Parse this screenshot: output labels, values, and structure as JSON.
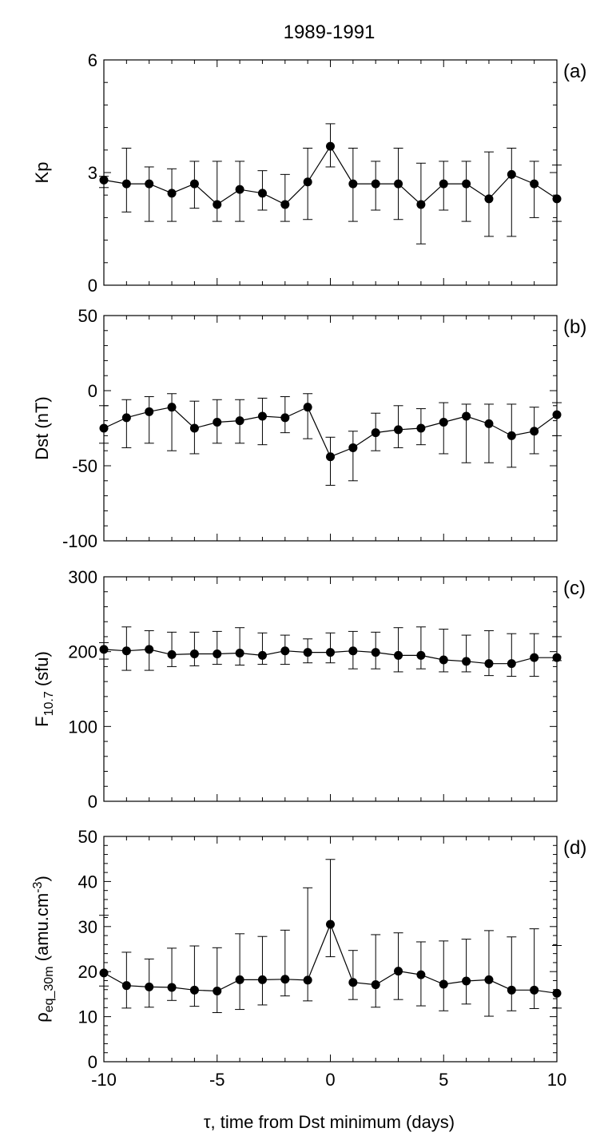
{
  "title": "1989-1991",
  "xlabel": "τ, time from Dst minimum (days)",
  "chart_data": [
    {
      "type": "line",
      "panel": "(a)",
      "ylabel": "Kp",
      "xlim": [
        -10,
        10
      ],
      "ylim": [
        0,
        6
      ],
      "x": [
        -10,
        -9,
        -8,
        -7,
        -6,
        -5,
        -4,
        -3,
        -2,
        -1,
        0,
        1,
        2,
        3,
        4,
        5,
        6,
        7,
        8,
        9,
        10
      ],
      "series": [
        {
          "values": [
            2.8,
            2.7,
            2.7,
            2.45,
            2.7,
            2.15,
            2.55,
            2.45,
            2.15,
            2.75,
            3.7,
            2.7,
            2.7,
            2.7,
            2.15,
            2.7,
            2.7,
            2.3,
            2.95,
            2.7,
            2.3
          ],
          "err_upper": [
            2.9,
            3.65,
            3.15,
            3.1,
            3.3,
            3.3,
            3.3,
            3.05,
            2.95,
            3.65,
            4.3,
            3.65,
            3.3,
            3.65,
            3.25,
            3.3,
            3.3,
            3.55,
            3.65,
            3.3,
            3.2
          ],
          "err_lower": [
            2.6,
            1.95,
            1.7,
            1.7,
            2.05,
            1.7,
            1.7,
            2.0,
            1.7,
            1.75,
            3.15,
            1.7,
            2.0,
            1.75,
            1.1,
            2.0,
            1.7,
            1.3,
            1.3,
            1.8,
            1.7
          ]
        }
      ],
      "xticks": [
        -10,
        -5,
        0,
        5,
        10
      ],
      "yticks": [
        0,
        3,
        6
      ],
      "ytick_labels": [
        "0",
        "3",
        "6"
      ],
      "xtick_labels": [
        "",
        "",
        "",
        "",
        ""
      ]
    },
    {
      "type": "line",
      "panel": "(b)",
      "ylabel": "Dst (nT)",
      "xlim": [
        -10,
        10
      ],
      "ylim": [
        -100,
        50
      ],
      "x": [
        -10,
        -9,
        -8,
        -7,
        -6,
        -5,
        -4,
        -3,
        -2,
        -1,
        0,
        1,
        2,
        3,
        4,
        5,
        6,
        7,
        8,
        9,
        10
      ],
      "series": [
        {
          "values": [
            -25,
            -18,
            -14,
            -11,
            -25,
            -21,
            -20,
            -17,
            -18,
            -11,
            -44,
            -38,
            -28,
            -26,
            -25,
            -21,
            -17,
            -22,
            -30,
            -27,
            -16
          ],
          "err_upper": [
            -10,
            -6,
            -4,
            -2,
            -7,
            -6,
            -6,
            -5,
            -4,
            -2,
            -31,
            -27,
            -15,
            -10,
            -12,
            -8,
            -9,
            -9,
            -9,
            -11,
            -8
          ],
          "err_lower": [
            -35,
            -38,
            -35,
            -40,
            -42,
            -35,
            -35,
            -36,
            -28,
            -32,
            -63,
            -60,
            -40,
            -38,
            -36,
            -42,
            -48,
            -48,
            -51,
            -42,
            -30
          ]
        }
      ],
      "xticks": [
        -10,
        -5,
        0,
        5,
        10
      ],
      "yticks": [
        -100,
        -50,
        0,
        50
      ],
      "ytick_labels": [
        "-100",
        "-50",
        "0",
        "50"
      ],
      "xtick_labels": [
        "",
        "",
        "",
        "",
        ""
      ]
    },
    {
      "type": "line",
      "panel": "(c)",
      "ylabel": "F10.7 (sfu)",
      "ylabel_main": "F",
      "ylabel_sub": "10.7",
      "ylabel_tail": " (sfu)",
      "xlim": [
        -10,
        10
      ],
      "ylim": [
        0,
        300
      ],
      "x": [
        -10,
        -9,
        -8,
        -7,
        -6,
        -5,
        -4,
        -3,
        -2,
        -1,
        0,
        1,
        2,
        3,
        4,
        5,
        6,
        7,
        8,
        9,
        10
      ],
      "series": [
        {
          "values": [
            203,
            201,
            203,
            196,
            197,
            197,
            198,
            195,
            201,
            199,
            199,
            201,
            199,
            195,
            195,
            189,
            187,
            184,
            184,
            192,
            192
          ],
          "err_upper": [
            212,
            233,
            228,
            226,
            226,
            227,
            232,
            225,
            222,
            217,
            225,
            227,
            226,
            232,
            233,
            230,
            222,
            228,
            224,
            224,
            220
          ],
          "err_lower": [
            190,
            175,
            175,
            180,
            181,
            183,
            182,
            183,
            183,
            185,
            185,
            177,
            177,
            173,
            177,
            173,
            173,
            168,
            167,
            167,
            188
          ]
        }
      ],
      "xticks": [
        -10,
        -5,
        0,
        5,
        10
      ],
      "yticks": [
        0,
        100,
        200,
        300
      ],
      "ytick_labels": [
        "0",
        "100",
        "200",
        "300"
      ],
      "xtick_labels": [
        "",
        "",
        "",
        "",
        ""
      ]
    },
    {
      "type": "line",
      "panel": "(d)",
      "ylabel": "ρeq_30m (amu.cm-3)",
      "ylabel_main": "ρ",
      "ylabel_sub": "eq_30m",
      "ylabel_tail": " (amu.cm",
      "ylabel_sup": "-3",
      "ylabel_end": ")",
      "xlim": [
        -10,
        10
      ],
      "ylim": [
        0,
        50
      ],
      "x": [
        -10,
        -9,
        -8,
        -7,
        -6,
        -5,
        -4,
        -3,
        -2,
        -1,
        0,
        1,
        2,
        3,
        4,
        5,
        6,
        7,
        8,
        9,
        10
      ],
      "series": [
        {
          "values": [
            19.7,
            16.9,
            16.6,
            16.5,
            15.9,
            15.7,
            18.2,
            18.2,
            18.3,
            18.1,
            30.5,
            17.6,
            17.1,
            20.1,
            19.3,
            17.2,
            17.9,
            18.2,
            15.9,
            15.9,
            15.2
          ],
          "err_upper": [
            32.5,
            24.3,
            22.8,
            25.2,
            25.7,
            25.3,
            28.4,
            27.8,
            29.2,
            38.6,
            44.9,
            24.7,
            28.2,
            28.6,
            26.6,
            26.8,
            27.2,
            29.1,
            27.7,
            29.5,
            25.8
          ],
          "err_lower": [
            16.8,
            11.9,
            12.1,
            13.6,
            12.3,
            10.9,
            11.6,
            12.6,
            14.6,
            13.5,
            23.3,
            13.8,
            12.1,
            13.8,
            12.4,
            11.3,
            12.8,
            10.1,
            11.3,
            11.8,
            11.9
          ]
        }
      ],
      "xticks": [
        -10,
        -5,
        0,
        5,
        10
      ],
      "yticks": [
        0,
        10,
        20,
        30,
        40,
        50
      ],
      "ytick_labels": [
        "0",
        "10",
        "20",
        "30",
        "40",
        "50"
      ],
      "xtick_labels": [
        "-10",
        "-5",
        "0",
        "5",
        "10"
      ]
    }
  ]
}
